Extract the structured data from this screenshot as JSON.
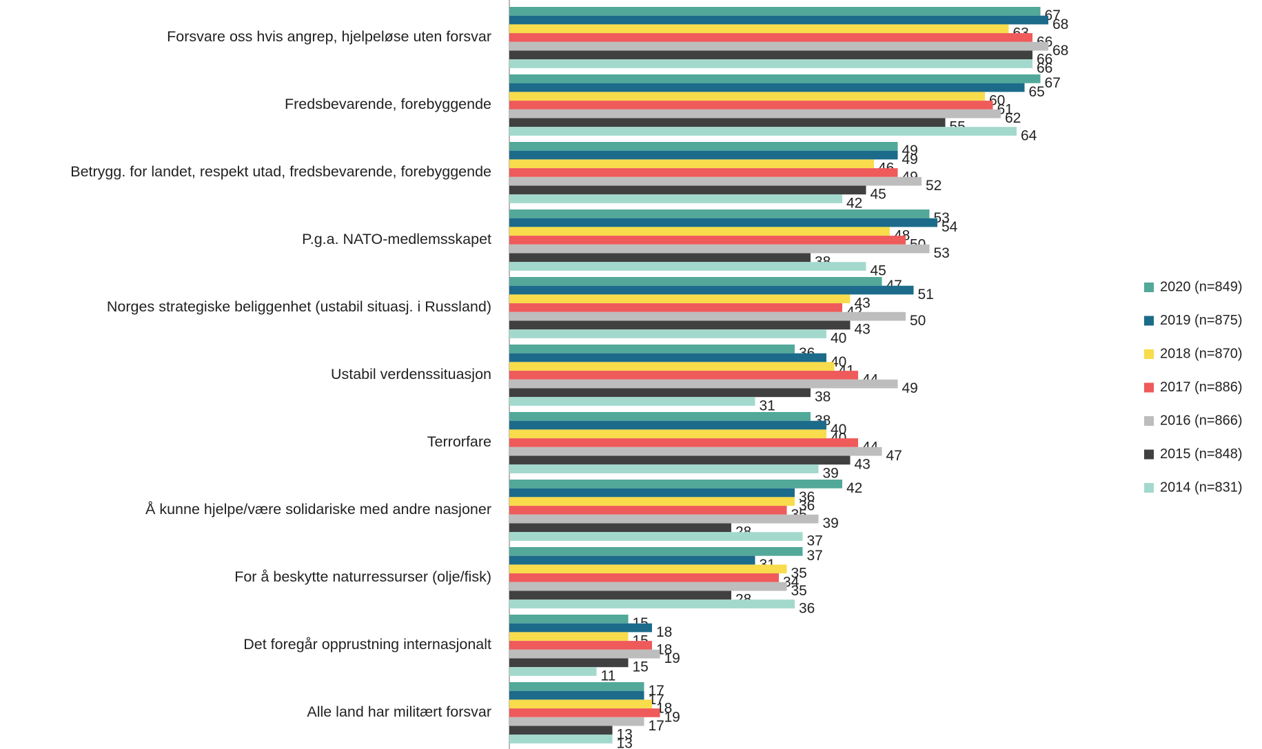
{
  "chart_data": {
    "type": "hbar",
    "categories": [
      "Forsvare oss hvis angrep, hjelpeløse uten forsvar",
      "Fredsbevarende, forebyggende",
      "Betrygg. for landet, respekt utad, fredsbevarende, forebyggende",
      "P.g.a. NATO-medlemsskapet",
      "Norges strategiske beliggenhet (ustabil situasj. i Russland)",
      "Ustabil verdenssituasjon",
      "Terrorfare",
      "Å kunne hjelpe/være solidariske med andre nasjoner",
      "For å beskytte naturressurser (olje/fisk)",
      "Det foregår opprustning internasjonalt",
      "Alle land har militært forsvar"
    ],
    "series": [
      {
        "name": "2020 (n=849)",
        "color": "#52a899",
        "values": [
          67,
          67,
          49,
          53,
          47,
          36,
          38,
          42,
          37,
          15,
          17
        ]
      },
      {
        "name": "2019 (n=875)",
        "color": "#1c6b8a",
        "values": [
          68,
          65,
          49,
          54,
          51,
          40,
          40,
          36,
          31,
          18,
          17
        ]
      },
      {
        "name": "2018 (n=870)",
        "color": "#f8dc4c",
        "values": [
          63,
          60,
          46,
          48,
          43,
          41,
          40,
          36,
          35,
          15,
          18
        ]
      },
      {
        "name": "2017 (n=886)",
        "color": "#ef5a5a",
        "values": [
          66,
          61,
          49,
          50,
          42,
          44,
          44,
          35,
          34,
          18,
          19
        ]
      },
      {
        "name": "2016 (n=866)",
        "color": "#bdbdbd",
        "values": [
          68,
          62,
          52,
          53,
          50,
          49,
          47,
          39,
          35,
          19,
          17
        ]
      },
      {
        "name": "2015 (n=848)",
        "color": "#404040",
        "values": [
          66,
          55,
          45,
          38,
          43,
          38,
          43,
          28,
          28,
          15,
          13
        ]
      },
      {
        "name": "2014 (n=831)",
        "color": "#a3d9cd",
        "values": [
          66,
          64,
          42,
          45,
          40,
          31,
          39,
          37,
          36,
          11,
          13
        ]
      }
    ],
    "xlim": [
      0,
      70
    ]
  }
}
